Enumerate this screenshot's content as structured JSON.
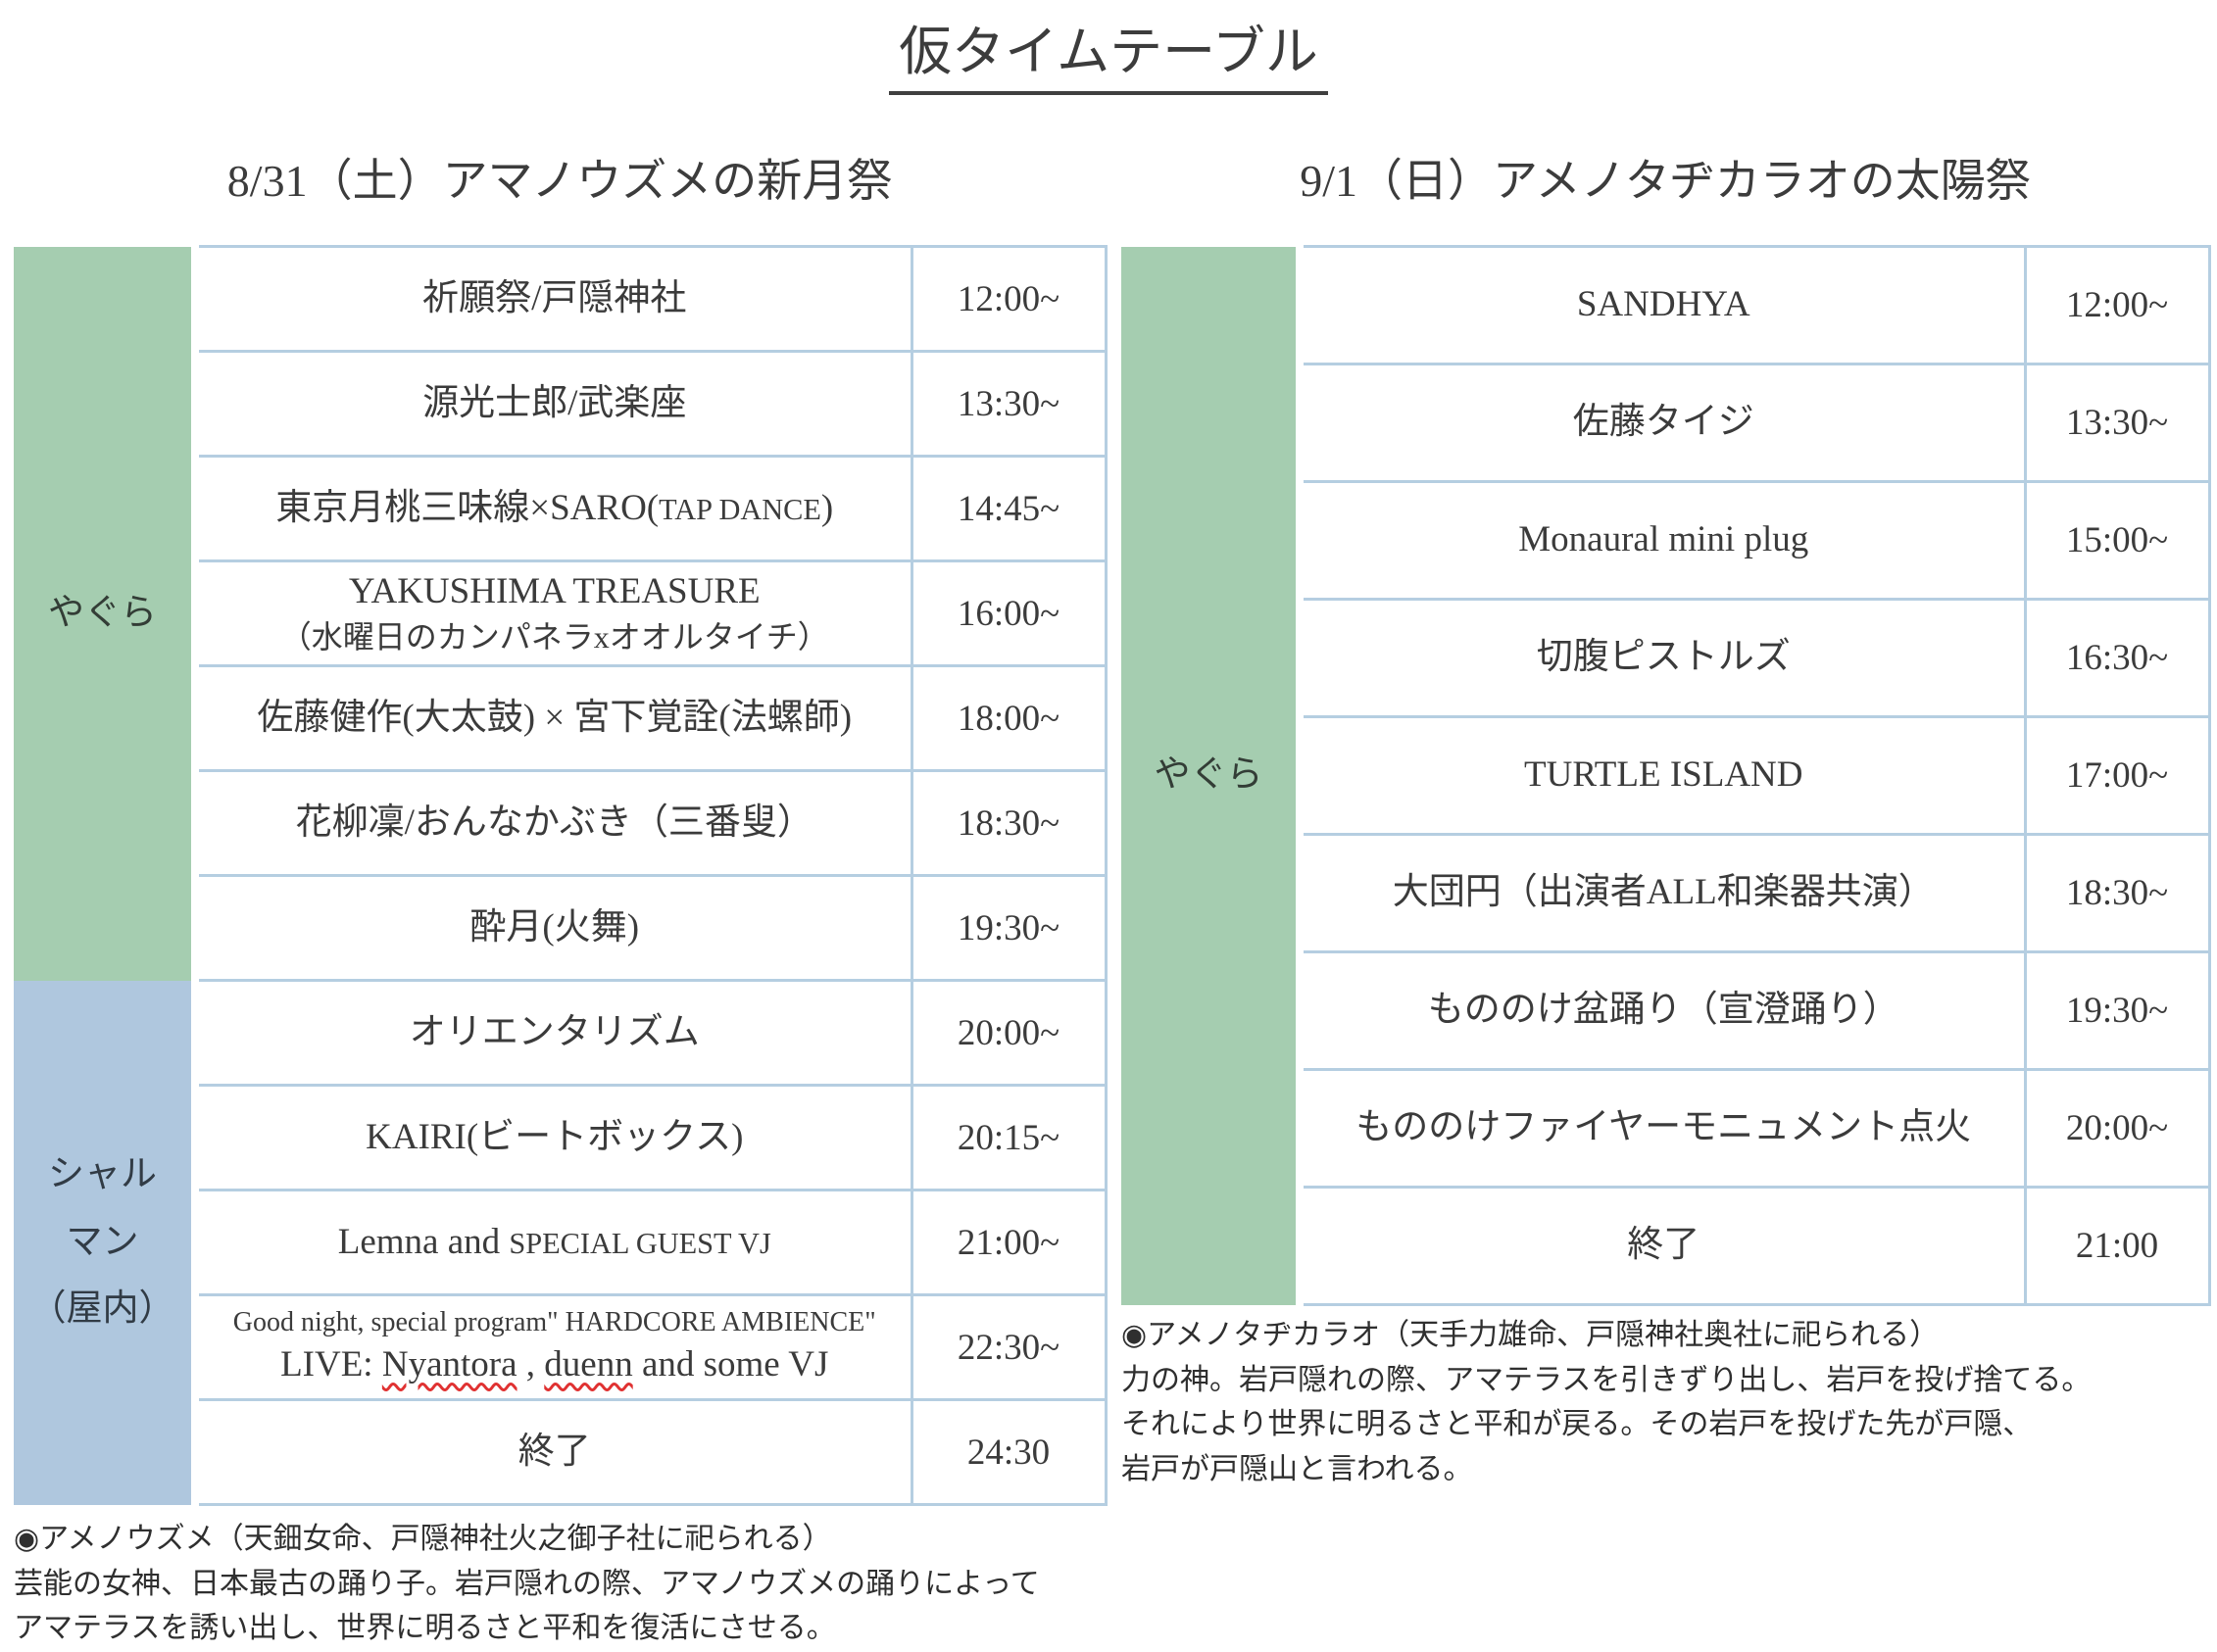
{
  "title": "仮タイムテーブル",
  "colors": {
    "stage_green": "#a5cdb0",
    "stage_blue": "#afc7de",
    "row_border": "#b5cee1",
    "spellcheck_underline": "#e03232"
  },
  "days": [
    {
      "header": "8/31（土）アマノウズメの新月祭",
      "sections": [
        {
          "stage_label_lines": [
            "やぐら"
          ],
          "color": "green",
          "rows": [
            {
              "lines": [
                {
                  "text": "祈願祭/戸隠神社"
                }
              ],
              "time": "12:00~"
            },
            {
              "lines": [
                {
                  "text": "源光士郎/武楽座"
                }
              ],
              "time": "13:30~"
            },
            {
              "lines": [
                {
                  "segments": [
                    {
                      "t": "東京月桃三味線×SARO("
                    },
                    {
                      "t": "TAP DANCE",
                      "small": true
                    },
                    {
                      "t": ")"
                    }
                  ]
                }
              ],
              "time": "14:45~"
            },
            {
              "lines": [
                {
                  "text": "YAKUSHIMA TREASURE"
                },
                {
                  "text": "（水曜日のカンパネラxオオルタイチ）",
                  "size": "small"
                }
              ],
              "time": "16:00~"
            },
            {
              "lines": [
                {
                  "text": "佐藤健作(大太鼓) × 宮下覚詮(法螺師)"
                }
              ],
              "time": "18:00~"
            },
            {
              "lines": [
                {
                  "text": "花柳凜/おんなかぶき（三番叟）"
                }
              ],
              "time": "18:30~"
            },
            {
              "lines": [
                {
                  "text": "酔月(火舞)"
                }
              ],
              "time": "19:30~"
            }
          ]
        },
        {
          "stage_label_lines": [
            "シャル",
            "マン",
            "（屋内）"
          ],
          "color": "blue",
          "rows": [
            {
              "lines": [
                {
                  "text": "オリエンタリズム"
                }
              ],
              "time": "20:00~"
            },
            {
              "lines": [
                {
                  "text": "KAIRI(ビートボックス)"
                }
              ],
              "time": "20:15~"
            },
            {
              "lines": [
                {
                  "segments": [
                    {
                      "t": "Lemna and "
                    },
                    {
                      "t": "SPECIAL GUEST VJ",
                      "small": true
                    }
                  ]
                }
              ],
              "time": "21:00~"
            },
            {
              "lines": [
                {
                  "text": "Good night, special program\" HARDCORE AMBIENCE\"",
                  "size": "xsmall"
                },
                {
                  "segments": [
                    {
                      "t": "LIVE: "
                    },
                    {
                      "t": "Nyantora",
                      "wavy": true
                    },
                    {
                      "t": " , "
                    },
                    {
                      "t": "duenn",
                      "wavy": true
                    },
                    {
                      "t": " and some VJ"
                    }
                  ]
                }
              ],
              "time": "22:30~"
            },
            {
              "lines": [
                {
                  "text": "終了"
                }
              ],
              "time": "24:30"
            }
          ]
        }
      ],
      "note_lines": [
        "◉アメノウズメ（天鈿女命、戸隠神社火之御子社に祀られる）",
        "芸能の女神、日本最古の踊り子。岩戸隠れの際、アマノウズメの踊りによって",
        "アマテラスを誘い出し、世界に明るさと平和を復活にさせる。"
      ]
    },
    {
      "header": "9/1（日）アメノタヂカラオの太陽祭",
      "sections": [
        {
          "stage_label_lines": [
            "やぐら"
          ],
          "color": "green",
          "rows": [
            {
              "lines": [
                {
                  "text": "SANDHYA"
                }
              ],
              "time": "12:00~"
            },
            {
              "lines": [
                {
                  "text": "佐藤タイジ"
                }
              ],
              "time": "13:30~"
            },
            {
              "lines": [
                {
                  "text": "Monaural mini plug"
                }
              ],
              "time": "15:00~"
            },
            {
              "lines": [
                {
                  "text": "切腹ピストルズ"
                }
              ],
              "time": "16:30~"
            },
            {
              "lines": [
                {
                  "text": "TURTLE ISLAND"
                }
              ],
              "time": "17:00~"
            },
            {
              "lines": [
                {
                  "text": "大団円（出演者ALL和楽器共演）"
                }
              ],
              "time": "18:30~"
            },
            {
              "lines": [
                {
                  "text": "もののけ盆踊り（宣澄踊り）"
                }
              ],
              "time": "19:30~"
            },
            {
              "lines": [
                {
                  "text": "もののけファイヤーモニュメント点火"
                }
              ],
              "time": "20:00~"
            },
            {
              "lines": [
                {
                  "text": "終了"
                }
              ],
              "time": "21:00"
            }
          ]
        }
      ],
      "note_lines": [
        "◉アメノタヂカラオ（天手力雄命、戸隠神社奥社に祀られる）",
        "力の神。岩戸隠れの際、アマテラスを引きずり出し、岩戸を投げ捨てる。",
        "それにより世界に明るさと平和が戻る。その岩戸を投げた先が戸隠、",
        "岩戸が戸隠山と言われる。"
      ]
    }
  ]
}
